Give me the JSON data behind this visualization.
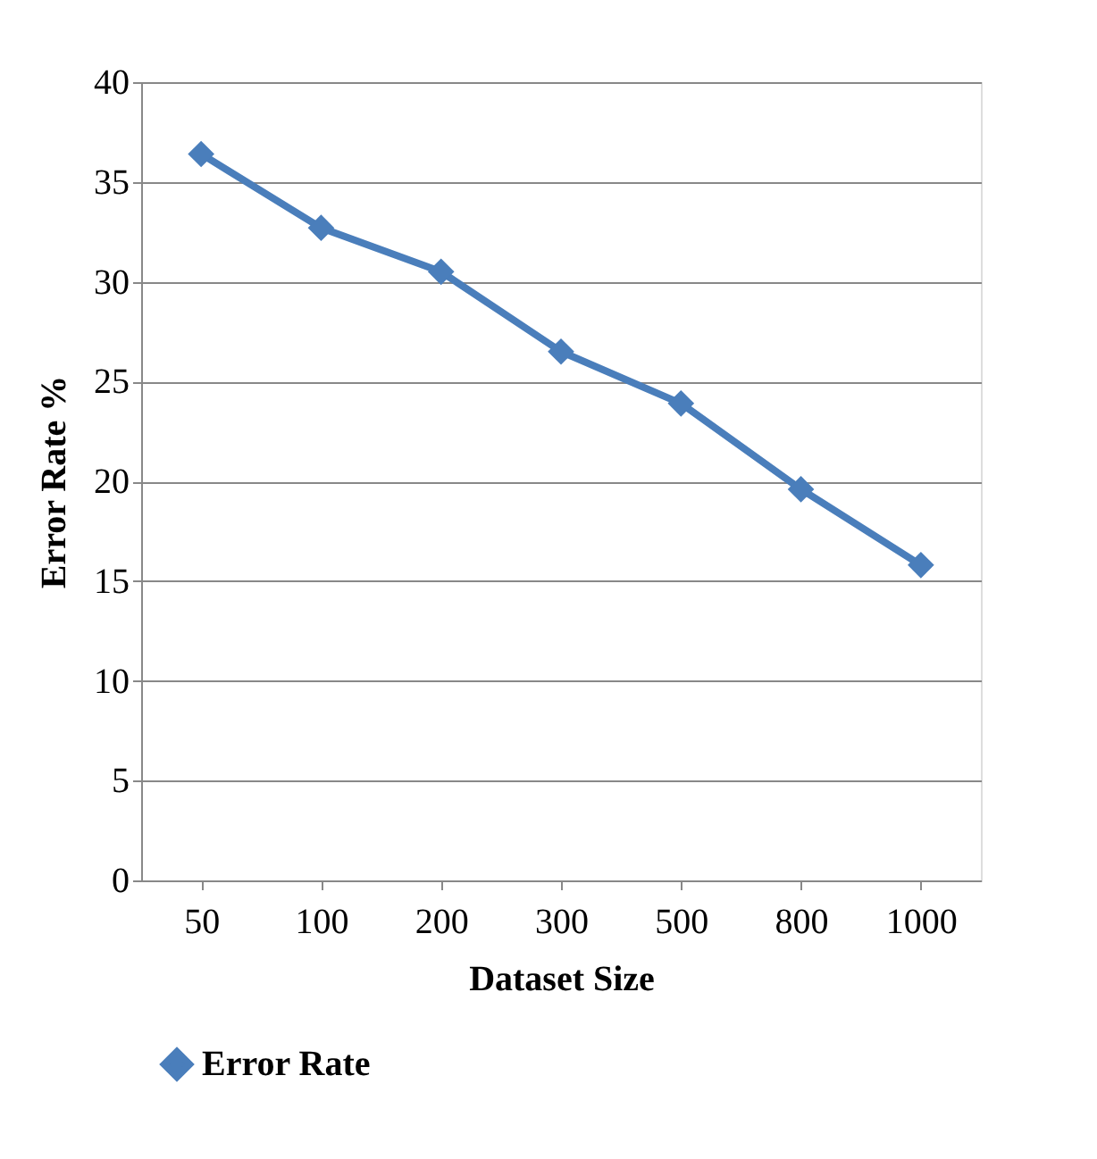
{
  "chart_data": {
    "type": "line",
    "xlabel": "Dataset Size",
    "ylabel": "Error Rate %",
    "categories": [
      "50",
      "100",
      "200",
      "300",
      "500",
      "800",
      "1000"
    ],
    "series": [
      {
        "name": "Error Rate",
        "color": "#4a7ebb",
        "values": [
          36.4,
          32.7,
          30.5,
          26.5,
          23.9,
          19.6,
          15.8
        ]
      }
    ],
    "ylim": [
      0,
      40
    ],
    "yticks": [
      0,
      5,
      10,
      15,
      20,
      25,
      30,
      35,
      40
    ],
    "grid": "y",
    "legend": "bottom",
    "marker": "diamond",
    "line_style": "solid"
  }
}
